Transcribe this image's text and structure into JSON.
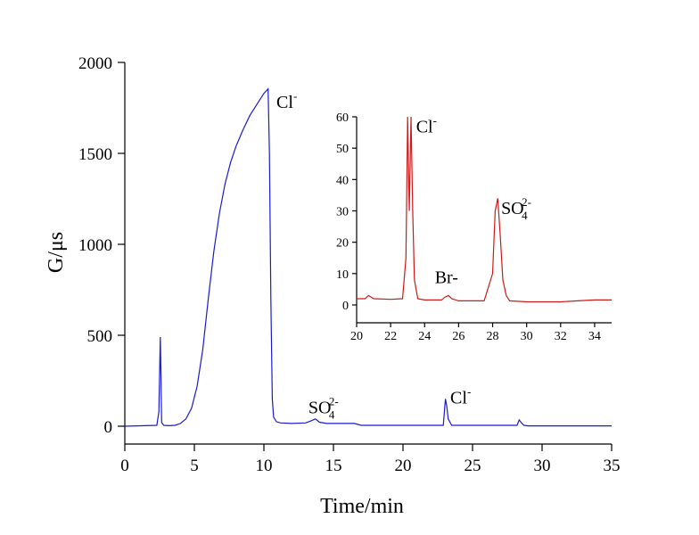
{
  "chart_data": [
    {
      "type": "line",
      "xlabel": "Time/min",
      "ylabel": "G/μs",
      "xlim": [
        0,
        35
      ],
      "ylim": [
        -60,
        2000
      ],
      "xticks": [
        0,
        5,
        10,
        15,
        20,
        25,
        30,
        35
      ],
      "yticks": [
        0,
        500,
        1000,
        1500,
        2000
      ],
      "color": "#1a1acc",
      "series": [
        {
          "x": [
            0,
            2.3,
            2.45,
            2.55,
            2.6,
            2.65,
            2.8,
            3.2,
            3.6,
            4.0,
            4.4,
            4.8,
            5.2,
            5.6,
            6.0,
            6.4,
            6.8,
            7.2,
            7.6,
            8.0,
            8.5,
            9.0,
            9.5,
            10.0,
            10.3,
            10.4,
            10.5,
            10.6,
            10.7,
            10.9,
            11.2,
            12.0,
            13.0,
            13.4,
            13.7,
            14.0,
            14.5,
            16.5,
            17.0,
            22.9,
            23.05,
            23.15,
            23.25,
            23.5,
            28.2,
            28.35,
            28.5,
            28.7,
            29.0,
            35.0
          ],
          "y": [
            0,
            5,
            80,
            490,
            260,
            20,
            5,
            3,
            5,
            15,
            40,
            100,
            220,
            420,
            700,
            960,
            1170,
            1330,
            1450,
            1540,
            1630,
            1710,
            1770,
            1830,
            1855,
            1500,
            700,
            150,
            50,
            25,
            18,
            15,
            18,
            30,
            40,
            22,
            15,
            15,
            5,
            5,
            150,
            110,
            40,
            5,
            5,
            35,
            20,
            5,
            2,
            2
          ]
        }
      ],
      "annotations": [
        {
          "text": "Cl",
          "sup": "-",
          "x": 10.9,
          "y": 1750
        },
        {
          "text": "SO",
          "sub": "4",
          "sup": "2-",
          "x": 13.2,
          "y": 70
        },
        {
          "text": "Cl",
          "sup": "-",
          "x": 23.4,
          "y": 125
        }
      ]
    },
    {
      "type": "line",
      "xlim": [
        20,
        35
      ],
      "ylim": [
        -4,
        60
      ],
      "xticks": [
        20,
        22,
        24,
        26,
        28,
        30,
        32,
        34
      ],
      "yticks": [
        0,
        10,
        20,
        30,
        40,
        50,
        60
      ],
      "color": "#cc1a1a",
      "series": [
        {
          "x": [
            20,
            20.5,
            20.7,
            21.0,
            22.0,
            22.7,
            22.9,
            23.0,
            23.1,
            23.2,
            23.3,
            23.4,
            23.6,
            24.0,
            25.0,
            25.2,
            25.4,
            25.6,
            26.0,
            27.5,
            28.0,
            28.15,
            28.3,
            28.45,
            28.6,
            28.8,
            29.0,
            30.0,
            32.0,
            33.0,
            34.0,
            35.0
          ],
          "y": [
            2,
            2,
            3,
            2,
            1.8,
            2,
            15,
            60,
            30,
            60,
            30,
            8,
            2,
            1.6,
            1.6,
            2.5,
            3,
            2,
            1.3,
            1.3,
            10,
            30,
            34,
            22,
            8,
            3,
            1.3,
            1,
            1,
            1.3,
            1.6,
            1.6
          ]
        }
      ],
      "annotations": [
        {
          "text": "Cl",
          "sup": "-",
          "x": 23.5,
          "y": 55
        },
        {
          "text": "Br-",
          "x": 24.6,
          "y": 7
        },
        {
          "text": "SO",
          "sub": "4",
          "sup": "2-",
          "x": 28.5,
          "y": 29
        }
      ]
    }
  ]
}
